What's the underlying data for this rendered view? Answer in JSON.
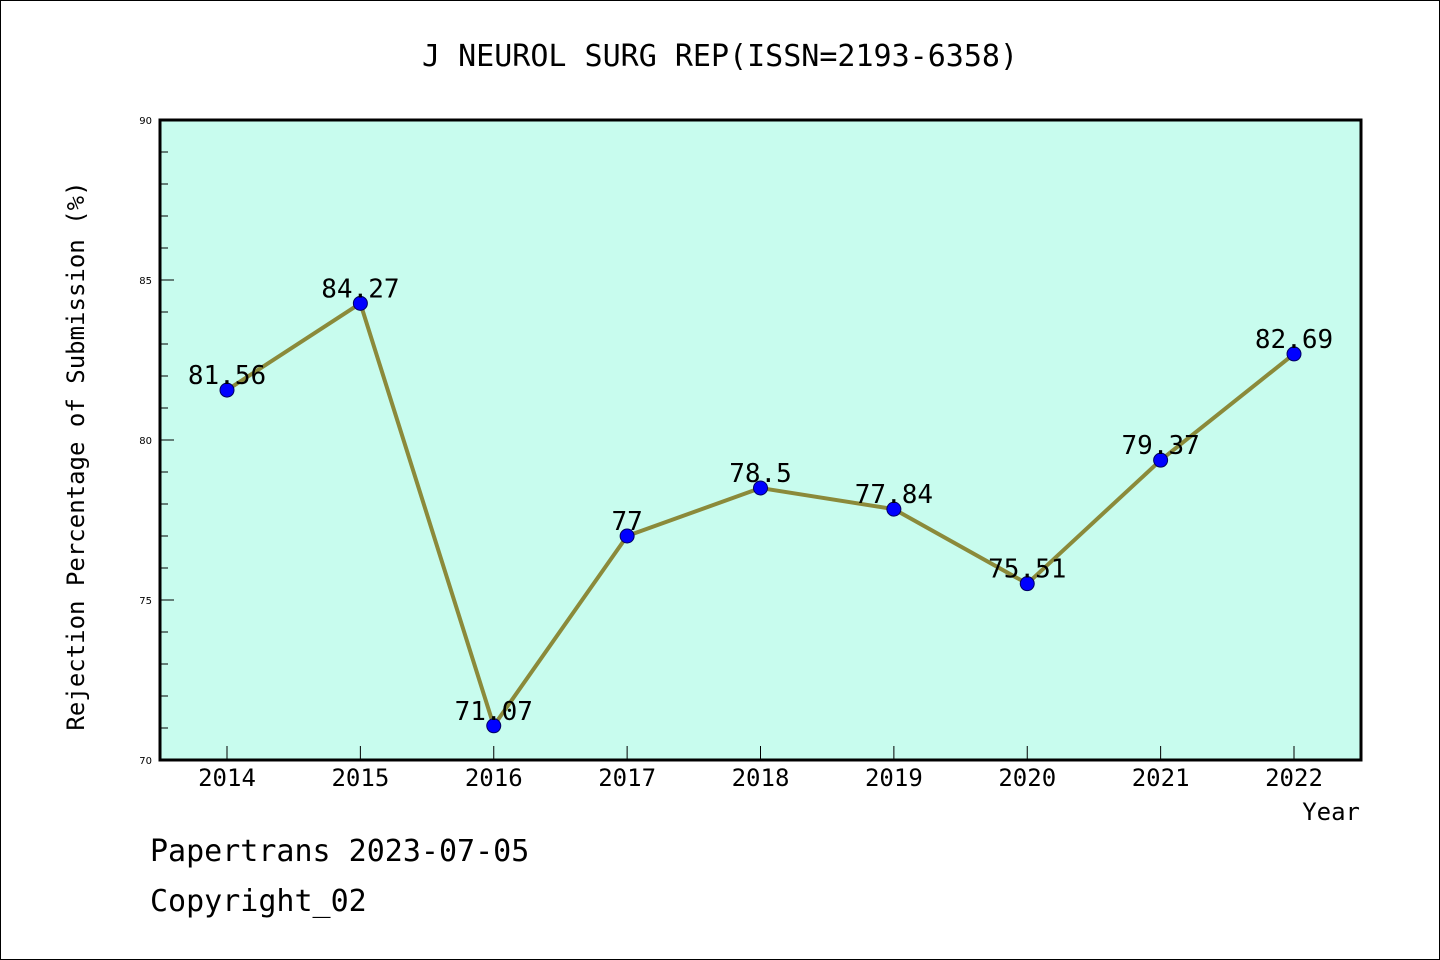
{
  "chart_data": {
    "type": "line",
    "title": "J NEUROL SURG REP(ISSN=2193-6358)",
    "xlabel": "Year",
    "ylabel": "Rejection Percentage of Submission (%)",
    "categories": [
      "2014",
      "2015",
      "2016",
      "2017",
      "2018",
      "2019",
      "2020",
      "2021",
      "2022"
    ],
    "values": [
      81.56,
      84.27,
      71.07,
      77,
      78.5,
      77.84,
      75.51,
      79.37,
      82.69
    ],
    "data_labels": [
      "81.56",
      "84.27",
      "71.07",
      "77",
      "78.5",
      "77.84",
      "75.51",
      "79.37",
      "82.69"
    ],
    "ylim": [
      70,
      90
    ],
    "yticks": [
      70,
      75,
      80,
      85,
      90
    ],
    "ytick_labels": [
      "70",
      "75",
      "80",
      "85",
      "90"
    ],
    "grid": false,
    "colors": {
      "plot_background": "#c8fcee",
      "line": "#8b8a3a",
      "marker": "#0000ff"
    }
  },
  "footer": {
    "line1": "Papertrans 2023-07-05",
    "line2": "Copyright_02"
  }
}
